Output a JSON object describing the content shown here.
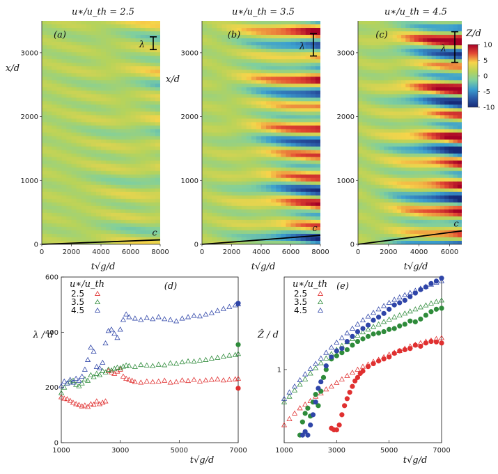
{
  "figure": {
    "colorbar": {
      "title": "Z/d",
      "ticks": [
        10,
        5,
        0,
        -5,
        -10
      ],
      "tick_labels": [
        "10",
        "5",
        "0",
        "-5",
        "-10"
      ],
      "stops": [
        "#a50026",
        "#e34a33",
        "#f7d44a",
        "#b7d35a",
        "#7fcf9f",
        "#3b9fcf",
        "#2b5ba8",
        "#172a78"
      ]
    }
  },
  "chart_data": [
    {
      "id": "a",
      "type": "heatmap",
      "tag": "(a)",
      "title": "u∗/u_th = 2.5",
      "xlabel": "t√g/d",
      "ylabel": "x/d",
      "xlim": [
        0,
        8000
      ],
      "ylim": [
        0,
        3500
      ],
      "xticks": [
        0,
        2000,
        4000,
        6000,
        8000
      ],
      "yticks": [
        0,
        1000,
        2000,
        3000
      ],
      "front_label": "c",
      "front_end": [
        8000,
        70
      ],
      "lambda_label": "λ",
      "lambda_range": [
        3050,
        3250
      ],
      "max_amp": 3
    },
    {
      "id": "b",
      "type": "heatmap",
      "tag": "(b)",
      "title": "u∗/u_th = 3.5",
      "xlabel": "t√g/d",
      "ylabel": "x/d",
      "xlim": [
        0,
        8000
      ],
      "ylim": [
        0,
        3500
      ],
      "xticks": [
        0,
        2000,
        4000,
        6000,
        8000
      ],
      "yticks": [
        0,
        1000,
        2000,
        3000
      ],
      "front_label": "c",
      "front_end": [
        8000,
        140
      ],
      "lambda_label": "λ",
      "lambda_range": [
        2950,
        3300
      ],
      "max_amp": 10
    },
    {
      "id": "c",
      "type": "heatmap",
      "tag": "(c)",
      "title": "u∗/u_th = 4.5",
      "xlabel": "t√g/d",
      "ylabel": "",
      "xlim": [
        0,
        6800
      ],
      "ylim": [
        0,
        3500
      ],
      "xticks": [
        0,
        2000,
        4000,
        6000
      ],
      "yticks": [
        0,
        1000,
        2000,
        3000
      ],
      "front_label": "c",
      "front_end": [
        6800,
        210
      ],
      "lambda_label": "λ",
      "lambda_range": [
        2850,
        3330
      ],
      "max_amp": 12
    },
    {
      "id": "d",
      "type": "scatter",
      "tag": "(d)",
      "xlabel": "t√g/d",
      "ylabel": "λ / d",
      "xlim": [
        1000,
        7000
      ],
      "ylim": [
        0,
        600
      ],
      "xticks": [
        1000,
        3000,
        5000,
        7000
      ],
      "yticks": [
        0,
        200,
        400,
        600
      ],
      "legend_title": "u∗/u_th",
      "series": [
        {
          "name": "2.5",
          "color": "#e03030",
          "x": [
            1000,
            1100,
            1200,
            1300,
            1400,
            1500,
            1600,
            1700,
            1800,
            1900,
            2000,
            2100,
            2200,
            2300,
            2400,
            2500,
            2600,
            2700,
            2800,
            2900,
            3000,
            3100,
            3200,
            3300,
            3400,
            3500,
            3700,
            3900,
            4100,
            4300,
            4500,
            4700,
            4900,
            5100,
            5300,
            5500,
            5700,
            5900,
            6100,
            6300,
            6500,
            6700,
            6900,
            7000
          ],
          "y": [
            165,
            160,
            158,
            152,
            145,
            140,
            137,
            132,
            135,
            130,
            140,
            138,
            150,
            140,
            145,
            150,
            260,
            255,
            250,
            258,
            265,
            240,
            232,
            228,
            225,
            220,
            218,
            222,
            220,
            222,
            225,
            218,
            220,
            226,
            224,
            228,
            222,
            226,
            228,
            230,
            226,
            228,
            230,
            232
          ],
          "final_filled": 197
        },
        {
          "name": "3.5",
          "color": "#2e8b3a",
          "x": [
            1000,
            1100,
            1200,
            1300,
            1400,
            1500,
            1600,
            1700,
            1800,
            1900,
            2000,
            2100,
            2200,
            2300,
            2400,
            2500,
            2600,
            2700,
            2800,
            2900,
            3000,
            3100,
            3200,
            3300,
            3500,
            3700,
            3900,
            4100,
            4300,
            4500,
            4700,
            4900,
            5100,
            5300,
            5500,
            5700,
            5900,
            6100,
            6300,
            6500,
            6700,
            6900,
            7000
          ],
          "y": [
            180,
            200,
            215,
            220,
            225,
            210,
            205,
            215,
            230,
            225,
            245,
            238,
            250,
            245,
            260,
            255,
            265,
            262,
            268,
            272,
            270,
            276,
            280,
            278,
            275,
            282,
            280,
            278,
            283,
            281,
            288,
            286,
            292,
            295,
            294,
            298,
            300,
            305,
            308,
            312,
            316,
            318,
            322
          ],
          "final_filled": 355
        },
        {
          "name": "4.5",
          "color": "#2f45a8",
          "x": [
            1000,
            1100,
            1200,
            1300,
            1400,
            1500,
            1600,
            1700,
            1800,
            1900,
            2000,
            2100,
            2200,
            2300,
            2400,
            2500,
            2600,
            2700,
            2800,
            2900,
            3000,
            3100,
            3200,
            3300,
            3500,
            3700,
            3900,
            4100,
            4300,
            4500,
            4700,
            4900,
            5100,
            5300,
            5500,
            5700,
            5900,
            6100,
            6300,
            6500,
            6700,
            6900,
            7000
          ],
          "y": [
            205,
            222,
            215,
            228,
            218,
            232,
            225,
            240,
            265,
            300,
            345,
            330,
            275,
            270,
            290,
            360,
            405,
            410,
            395,
            380,
            410,
            445,
            465,
            455,
            450,
            445,
            452,
            448,
            455,
            448,
            445,
            440,
            450,
            455,
            460,
            458,
            465,
            470,
            478,
            485,
            492,
            498,
            502
          ],
          "final_filled": 505
        }
      ]
    },
    {
      "id": "e",
      "type": "scatter",
      "tag": "(e)",
      "xlabel": "t√g/d",
      "ylabel": "Ẑ / d",
      "yscale": "log",
      "xlim": [
        1000,
        7000
      ],
      "ylim": [
        0.38,
        3.4
      ],
      "xticks": [
        1000,
        3000,
        5000,
        7000
      ],
      "yticks": [
        1
      ],
      "legend_title": "u∗/u_th",
      "series": [
        {
          "name": "2.5",
          "color": "#e03030",
          "open_x": [
            1000,
            1200,
            1400,
            1600,
            1800,
            2000,
            2200,
            2400,
            2600,
            2800,
            3000,
            3200,
            3400,
            3600,
            3800,
            4000,
            4200,
            4400,
            4600,
            4800,
            5000,
            5200,
            5400,
            5600,
            5800,
            6000,
            6200,
            6400,
            6600,
            6800,
            7000
          ],
          "open_y": [
            0.48,
            0.52,
            0.56,
            0.6,
            0.63,
            0.66,
            0.7,
            0.73,
            0.77,
            0.8,
            0.84,
            0.88,
            0.92,
            0.96,
            1.0,
            1.04,
            1.07,
            1.11,
            1.14,
            1.18,
            1.22,
            1.25,
            1.28,
            1.32,
            1.36,
            1.39,
            1.42,
            1.45,
            1.47,
            1.5,
            1.52
          ],
          "filled_x": [
            2800,
            2900,
            3000,
            3100,
            3200,
            3300,
            3400,
            3500,
            3600,
            3700,
            3800,
            3900,
            4000,
            4200,
            4400,
            4600,
            4800,
            5000,
            5200,
            5400,
            5600,
            5800,
            6000,
            6200,
            6400,
            6600,
            6800,
            7000
          ],
          "filled_y": [
            0.46,
            0.45,
            0.45,
            0.48,
            0.55,
            0.62,
            0.68,
            0.74,
            0.8,
            0.86,
            0.9,
            0.95,
            0.98,
            1.04,
            1.08,
            1.12,
            1.15,
            1.18,
            1.24,
            1.28,
            1.3,
            1.32,
            1.38,
            1.36,
            1.42,
            1.45,
            1.44,
            1.42
          ]
        },
        {
          "name": "3.5",
          "color": "#2e8b3a",
          "open_x": [
            1000,
            1200,
            1400,
            1600,
            1800,
            2000,
            2200,
            2400,
            2600,
            2800,
            3000,
            3200,
            3400,
            3600,
            3800,
            4000,
            4200,
            4400,
            4600,
            4800,
            5000,
            5200,
            5400,
            5600,
            5800,
            6000,
            6200,
            6400,
            6600,
            6800,
            7000
          ],
          "open_y": [
            0.65,
            0.7,
            0.76,
            0.82,
            0.88,
            0.95,
            1.02,
            1.09,
            1.16,
            1.23,
            1.3,
            1.37,
            1.44,
            1.5,
            1.57,
            1.64,
            1.7,
            1.76,
            1.82,
            1.88,
            1.94,
            2.0,
            2.05,
            2.1,
            2.16,
            2.22,
            2.28,
            2.34,
            2.4,
            2.45,
            2.5
          ],
          "filled_x": [
            1600,
            1700,
            1800,
            1900,
            2000,
            2100,
            2200,
            2300,
            2400,
            2500,
            2600,
            2800,
            3000,
            3200,
            3400,
            3600,
            3800,
            4000,
            4200,
            4400,
            4600,
            4800,
            5000,
            5200,
            5400,
            5600,
            5800,
            6000,
            6200,
            6400,
            6600,
            6800,
            7000
          ],
          "filled_y": [
            0.42,
            0.5,
            0.56,
            0.6,
            0.54,
            0.65,
            0.72,
            0.62,
            0.75,
            0.9,
            1.0,
            1.15,
            1.2,
            1.25,
            1.3,
            1.38,
            1.45,
            1.5,
            1.55,
            1.6,
            1.62,
            1.65,
            1.7,
            1.72,
            1.78,
            1.82,
            1.9,
            1.88,
            1.95,
            2.05,
            2.15,
            2.22,
            2.25
          ]
        },
        {
          "name": "4.5",
          "color": "#2f45a8",
          "open_x": [
            1000,
            1200,
            1400,
            1600,
            1800,
            2000,
            2200,
            2400,
            2600,
            2800,
            3000,
            3200,
            3400,
            3600,
            3800,
            4000,
            4200,
            4400,
            4600,
            4800,
            5000,
            5200,
            5400,
            5600,
            5800,
            6000,
            6200,
            6400,
            6600,
            6800,
            7000
          ],
          "open_y": [
            0.68,
            0.74,
            0.8,
            0.87,
            0.94,
            1.01,
            1.08,
            1.16,
            1.25,
            1.34,
            1.43,
            1.52,
            1.62,
            1.72,
            1.82,
            1.92,
            2.02,
            2.12,
            2.22,
            2.32,
            2.42,
            2.52,
            2.6,
            2.68,
            2.76,
            2.84,
            2.92,
            3.0,
            3.08,
            3.16,
            3.22
          ],
          "filled_x": [
            1700,
            1800,
            1900,
            2000,
            2100,
            2200,
            2300,
            2400,
            2600,
            2800,
            3000,
            3200,
            3400,
            3600,
            3800,
            4000,
            4200,
            4400,
            4600,
            4800,
            5000,
            5200,
            5400,
            5600,
            5800,
            6000,
            6200,
            6400,
            6600,
            6800,
            7000
          ],
          "filled_y": [
            0.42,
            0.44,
            0.42,
            0.48,
            0.55,
            0.65,
            0.78,
            0.85,
            1.05,
            1.18,
            1.28,
            1.32,
            1.45,
            1.55,
            1.65,
            1.72,
            1.8,
            1.92,
            2.0,
            2.1,
            2.22,
            2.35,
            2.42,
            2.5,
            2.62,
            2.75,
            2.88,
            2.98,
            3.12,
            3.22,
            3.35
          ]
        }
      ]
    }
  ]
}
